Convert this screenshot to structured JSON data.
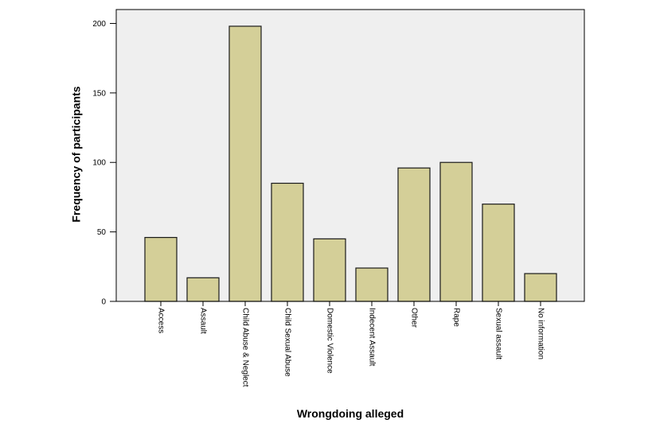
{
  "chart_data": {
    "type": "bar",
    "title": "",
    "xlabel": "Wrongdoing alleged",
    "ylabel": "Frequency of participants",
    "categories": [
      "Access",
      "Assault",
      "Child Abuse & Neglect",
      "Child Sexual Abuse",
      "Domestic Violence",
      "Indecent Assault",
      "Other",
      "Rape",
      "Sexual assault",
      "No information"
    ],
    "values": [
      46,
      17,
      198,
      85,
      45,
      24,
      96,
      100,
      70,
      20
    ],
    "ylim": [
      0,
      210
    ],
    "yticks": [
      "0",
      "50",
      "100",
      "150",
      "200"
    ],
    "grid": false,
    "legend": "none",
    "colors": {
      "bar_fill": "#d4cf98",
      "bar_stroke": "#1a1a1a",
      "plot_background": "#efefef",
      "axis": "#000000"
    }
  }
}
